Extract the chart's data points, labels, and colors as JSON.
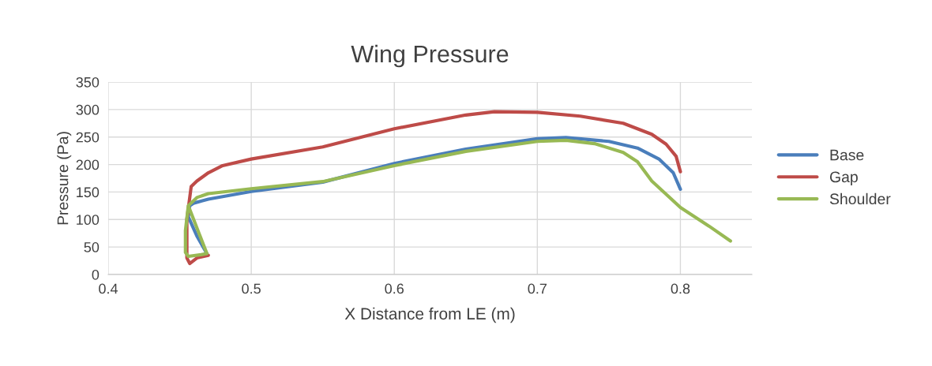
{
  "chart_data": {
    "type": "line",
    "title": "Wing Pressure",
    "xlabel": "X Distance from LE (m)",
    "ylabel": "Pressure (Pa)",
    "xlim": [
      0.4,
      0.85
    ],
    "xticks": [
      0.4,
      0.5,
      0.6,
      0.7,
      0.8
    ],
    "ylim": [
      0,
      350
    ],
    "yticks": [
      0,
      50,
      100,
      150,
      200,
      250,
      300,
      350
    ],
    "grid": true,
    "legend": "right",
    "marker": "none",
    "line_style": "solid",
    "series": [
      {
        "name": "Base",
        "color": "#4a7ebb",
        "x": [
          0.469,
          0.462,
          0.456,
          0.457,
          0.46,
          0.47,
          0.5,
          0.55,
          0.6,
          0.65,
          0.7,
          0.72,
          0.75,
          0.77,
          0.785,
          0.795,
          0.8
        ],
        "values": [
          38,
          70,
          105,
          125,
          130,
          137,
          151,
          168,
          202,
          228,
          247,
          249,
          242,
          230,
          210,
          185,
          155
        ]
      },
      {
        "name": "Gap",
        "color": "#be4b48",
        "x": [
          0.47,
          0.462,
          0.457,
          0.455,
          0.455,
          0.457,
          0.458,
          0.462,
          0.47,
          0.48,
          0.5,
          0.55,
          0.6,
          0.65,
          0.67,
          0.7,
          0.73,
          0.76,
          0.78,
          0.79,
          0.797,
          0.8
        ],
        "values": [
          35,
          30,
          20,
          30,
          100,
          140,
          160,
          170,
          185,
          198,
          210,
          232,
          265,
          290,
          296,
          295,
          288,
          275,
          255,
          237,
          215,
          187
        ]
      },
      {
        "name": "Shoulder",
        "color": "#98b954",
        "x": [
          0.456,
          0.469,
          0.465,
          0.456,
          0.454,
          0.454,
          0.456,
          0.462,
          0.47,
          0.5,
          0.55,
          0.6,
          0.65,
          0.7,
          0.72,
          0.74,
          0.76,
          0.77,
          0.78,
          0.8,
          0.82,
          0.835
        ],
        "values": [
          125,
          38,
          36,
          33,
          40,
          80,
          125,
          140,
          147,
          156,
          169,
          198,
          224,
          242,
          244,
          238,
          222,
          205,
          170,
          122,
          88,
          61
        ]
      }
    ]
  }
}
